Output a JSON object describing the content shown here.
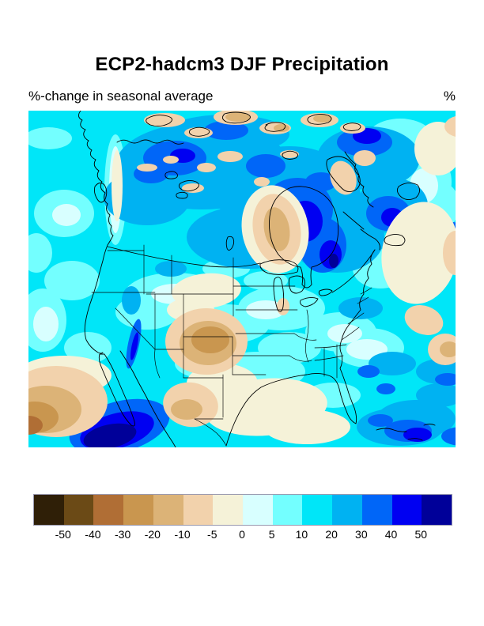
{
  "header": {
    "title": "ECP2-hadcm3 DJF Precipitation",
    "subtitle": "%-change in seasonal average",
    "units_label": "%"
  },
  "chart_data": {
    "type": "heatmap",
    "title": "ECP2-hadcm3 DJF Precipitation",
    "subtitle": "%-change in seasonal average",
    "units": "%",
    "region_shown": "North America (filled contour map of percent change in seasonal average precipitation)",
    "legend_position": "bottom",
    "colorbar": {
      "orientation": "horizontal",
      "tick_labels": [
        "-50",
        "-40",
        "-30",
        "-20",
        "-10",
        "-5",
        "0",
        "5",
        "10",
        "20",
        "30",
        "40",
        "50"
      ],
      "bin_edges_percent": [
        -50,
        -40,
        -30,
        -20,
        -10,
        -5,
        0,
        5,
        10,
        20,
        30,
        40,
        50
      ],
      "segment_colors": [
        "#2F1F07",
        "#6B4A16",
        "#B06E35",
        "#C9964F",
        "#DCB377",
        "#F2D2AC",
        "#F5F2D8",
        "#D8FFFF",
        "#73FFFF",
        "#00E6F8",
        "#00B2F2",
        "#0066F8",
        "#0000F2",
        "#000099"
      ]
    },
    "regions": [
      {
        "area": "Hudson Bay and eastern Arctic Canada",
        "change_percent": "+30 to +50"
      },
      {
        "area": "Canadian Arctic island land areas",
        "change_percent": "-10 to -30"
      },
      {
        "area": "Central and southern Canada",
        "change_percent": "+10 to +20"
      },
      {
        "area": "Pacific Northwest coast",
        "change_percent": "0 to +10"
      },
      {
        "area": "Colorado / central High Plains",
        "change_percent": "-10 to -30"
      },
      {
        "area": "West Texas and northern Mexico",
        "change_percent": "-5 to -20"
      },
      {
        "area": "Southeast US and Great Lakes",
        "change_percent": "+5 to +20"
      },
      {
        "area": "Western Atlantic off the east coast",
        "change_percent": "-5 to -10"
      },
      {
        "area": "Pacific southwest of Baja California",
        "change_percent": "greater than +50"
      },
      {
        "area": "Subtropical east Pacific (lower-left corner)",
        "change_percent": "-20 to -40"
      },
      {
        "area": "Caribbean / Bahamas",
        "change_percent": "+20 to +50"
      }
    ]
  }
}
